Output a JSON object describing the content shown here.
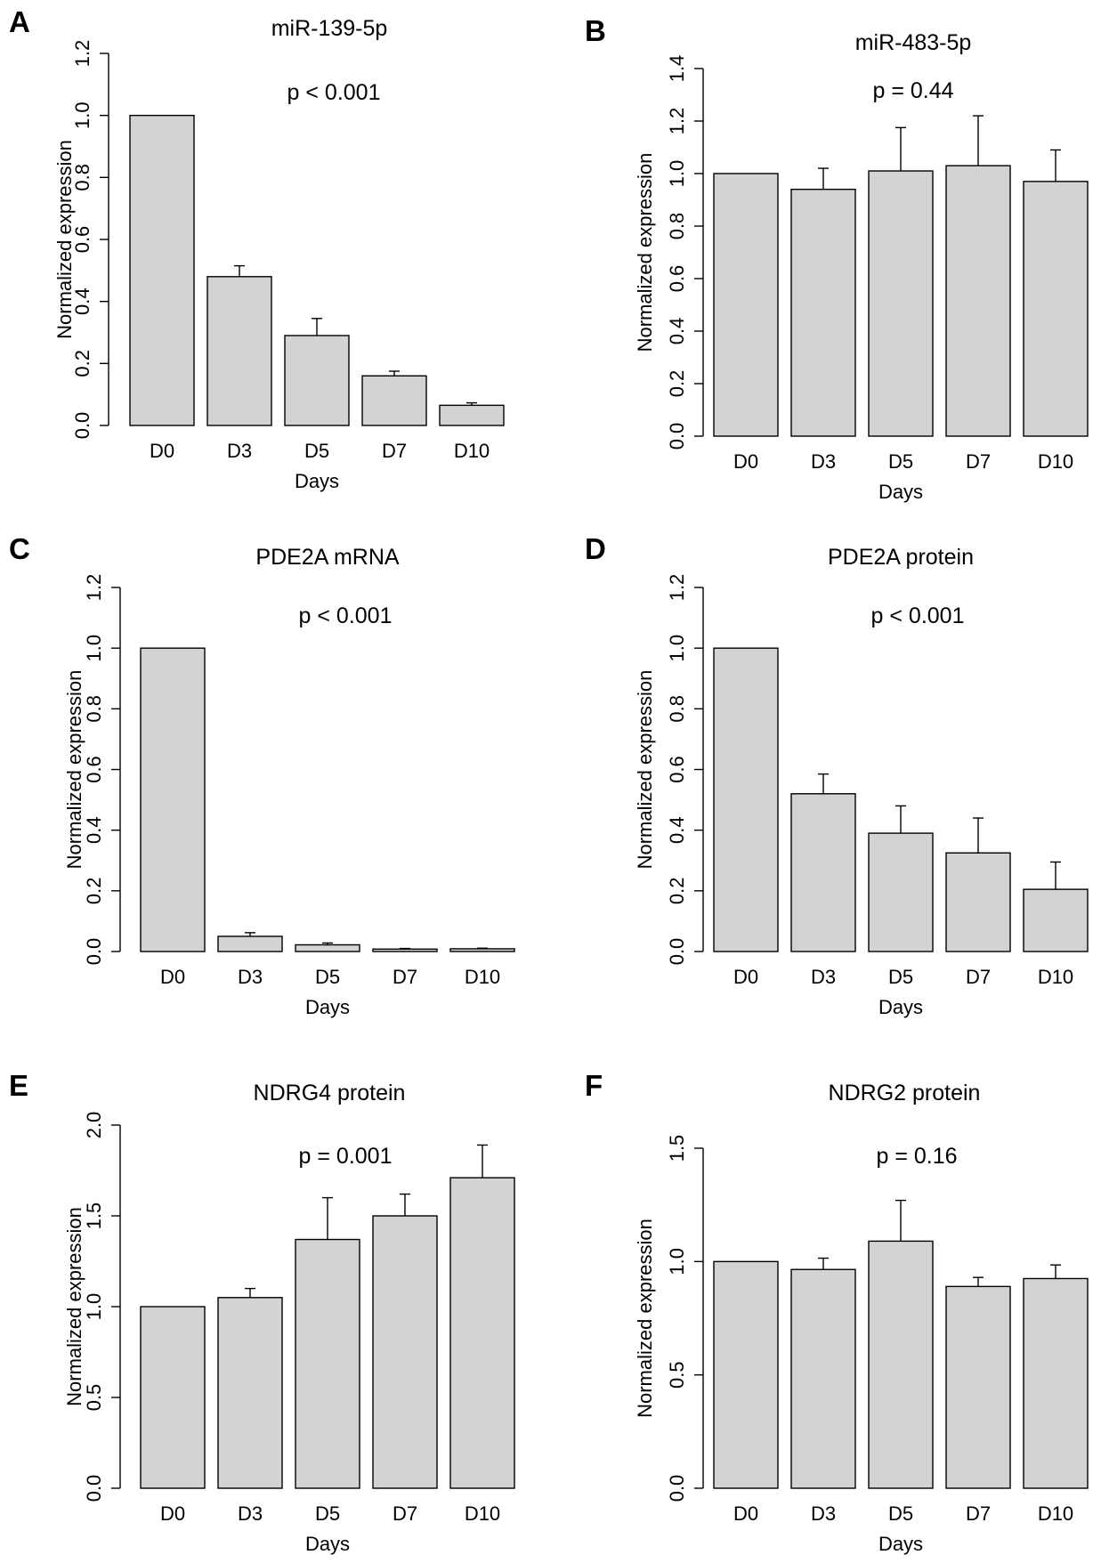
{
  "chart_data": [
    {
      "panel": "A",
      "type": "bar",
      "title": "miR-139-5p",
      "annotation": "p < 0.001",
      "xlabel": "Days",
      "ylabel": "Normalized expression",
      "categories": [
        "D0",
        "D3",
        "D5",
        "D7",
        "D10"
      ],
      "values": [
        1.0,
        0.48,
        0.29,
        0.16,
        0.065
      ],
      "errors": [
        0,
        0.035,
        0.055,
        0.015,
        0.008
      ],
      "ylim": [
        0,
        1.2
      ],
      "yticks": [
        "0.0",
        "0.2",
        "0.4",
        "0.6",
        "0.8",
        "1.0",
        "1.2"
      ]
    },
    {
      "panel": "B",
      "type": "bar",
      "title": "miR-483-5p",
      "annotation": "p = 0.44",
      "xlabel": "Days",
      "ylabel": "Normalized expression",
      "categories": [
        "D0",
        "D3",
        "D5",
        "D7",
        "D10"
      ],
      "values": [
        1.0,
        0.94,
        1.01,
        1.03,
        0.97
      ],
      "errors": [
        0,
        0.08,
        0.165,
        0.19,
        0.12
      ],
      "ylim": [
        0,
        1.4
      ],
      "yticks": [
        "0.0",
        "0.2",
        "0.4",
        "0.6",
        "0.8",
        "1.0",
        "1.2",
        "1.4"
      ]
    },
    {
      "panel": "C",
      "type": "bar",
      "title": "PDE2A mRNA",
      "annotation": "p < 0.001",
      "xlabel": "Days",
      "ylabel": "Normalized expression",
      "categories": [
        "D0",
        "D3",
        "D5",
        "D7",
        "D10"
      ],
      "values": [
        1.0,
        0.05,
        0.022,
        0.008,
        0.009
      ],
      "errors": [
        0,
        0.012,
        0.006,
        0.002,
        0.002
      ],
      "ylim": [
        0,
        1.2
      ],
      "yticks": [
        "0.0",
        "0.2",
        "0.4",
        "0.6",
        "0.8",
        "1.0",
        "1.2"
      ]
    },
    {
      "panel": "D",
      "type": "bar",
      "title": "PDE2A protein",
      "annotation": "p < 0.001",
      "xlabel": "Days",
      "ylabel": "Normalized expression",
      "categories": [
        "D0",
        "D3",
        "D5",
        "D7",
        "D10"
      ],
      "values": [
        1.0,
        0.52,
        0.39,
        0.325,
        0.205
      ],
      "errors": [
        0,
        0.065,
        0.09,
        0.115,
        0.09
      ],
      "ylim": [
        0,
        1.2
      ],
      "yticks": [
        "0.0",
        "0.2",
        "0.4",
        "0.6",
        "0.8",
        "1.0",
        "1.2"
      ]
    },
    {
      "panel": "E",
      "type": "bar",
      "title": "NDRG4 protein",
      "annotation": "p = 0.001",
      "xlabel": "Days",
      "ylabel": "Normalized expression",
      "categories": [
        "D0",
        "D3",
        "D5",
        "D7",
        "D10"
      ],
      "values": [
        1.0,
        1.05,
        1.37,
        1.5,
        1.71
      ],
      "errors": [
        0,
        0.05,
        0.23,
        0.12,
        0.18
      ],
      "ylim": [
        0,
        2.0
      ],
      "yticks": [
        "0.0",
        "0.5",
        "1.0",
        "1.5",
        "2.0"
      ]
    },
    {
      "panel": "F",
      "type": "bar",
      "title": "NDRG2 protein",
      "annotation": "p = 0.16",
      "xlabel": "Days",
      "ylabel": "Normalized expression",
      "categories": [
        "D0",
        "D3",
        "D5",
        "D7",
        "D10"
      ],
      "values": [
        1.0,
        0.965,
        1.09,
        0.89,
        0.925
      ],
      "errors": [
        0,
        0.05,
        0.18,
        0.04,
        0.06
      ],
      "ylim": [
        0,
        1.5
      ],
      "yticks": [
        "0.0",
        "0.5",
        "1.0",
        "1.5"
      ]
    }
  ]
}
